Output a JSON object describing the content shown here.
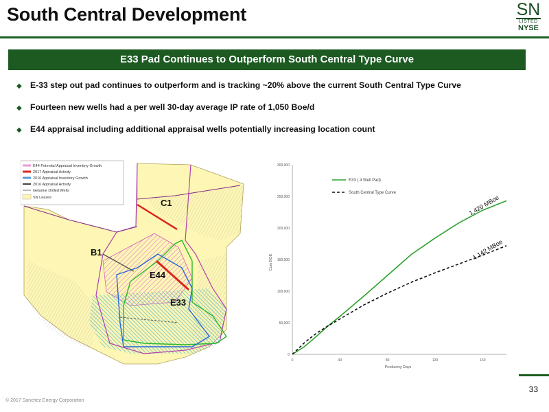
{
  "page": {
    "title": "South Central Development",
    "banner": "E33 Pad Continues to Outperform South Central Type Curve",
    "bullets": [
      "E-33 step out pad continues to outperform and is tracking ~20% above the current South Central Type Curve",
      "Fourteen new wells had a per well 30-day average IP rate of 1,050 Boe/d",
      "E44 appraisal including additional appraisal wells potentially increasing location count"
    ],
    "page_number": "33",
    "copyright": "© 2017 Sanchez Energy Corporation"
  },
  "logo": {
    "top": "SN",
    "middle": "LISTED",
    "bottom": "NYSE"
  },
  "map": {
    "legend": [
      {
        "label": "E44 Potential Appraisal Inventory Growth",
        "color": "#e89ad6"
      },
      {
        "label": "2017 Appraisal Activity",
        "color": "#d9261c"
      },
      {
        "label": "2016 Appraisal Inventory Growth",
        "color": "#5b9bd5"
      },
      {
        "label": "2016 Appraisal Activity",
        "color": "#444444"
      },
      {
        "label": "Gelarine Drilled Wells",
        "color": "#777777"
      },
      {
        "label": "SN Leases",
        "color": "#fdf6b4"
      }
    ],
    "labels": {
      "c1": "C1",
      "b1": "B1",
      "e44": "E44",
      "e33": "E33"
    }
  },
  "chart_data": {
    "type": "line",
    "title": "",
    "xlabel": "Producing Days",
    "ylabel": "Cum BOE",
    "xlim": [
      0,
      180
    ],
    "ylim": [
      0,
      300000
    ],
    "xticks": [
      0,
      40,
      80,
      120,
      160
    ],
    "xtick_labels": [
      "0",
      "40",
      "80",
      "120",
      "160"
    ],
    "yticks": [
      0,
      50000,
      100000,
      150000,
      200000,
      250000,
      300000
    ],
    "ytick_labels": [
      "0",
      "50,000",
      "100,000",
      "150,000",
      "200,000",
      "250,000",
      "300,000"
    ],
    "grid": false,
    "legend_position": "top-left",
    "series": [
      {
        "name": "E33 ( 4 Well Pad)",
        "color": "#2ca02c",
        "style": "solid",
        "x": [
          0,
          10,
          20,
          30,
          40,
          60,
          80,
          100,
          120,
          140,
          160,
          180
        ],
        "y": [
          0,
          12000,
          28000,
          45000,
          60000,
          92000,
          125000,
          158000,
          184000,
          208000,
          228000,
          243000
        ]
      },
      {
        "name": "South Central Type Curve",
        "color": "#111111",
        "style": "dashed",
        "x": [
          0,
          10,
          20,
          30,
          40,
          60,
          80,
          100,
          120,
          140,
          160,
          180
        ],
        "y": [
          0,
          18000,
          33000,
          45000,
          56000,
          78000,
          97000,
          114000,
          129000,
          143000,
          157000,
          172000
        ]
      }
    ],
    "annotations": [
      {
        "text": "1,420 MBoe",
        "x": 162,
        "y": 233000,
        "color": "#111111"
      },
      {
        "text": "1,142 MBoe",
        "x": 165,
        "y": 163000,
        "color": "#111111"
      }
    ]
  }
}
